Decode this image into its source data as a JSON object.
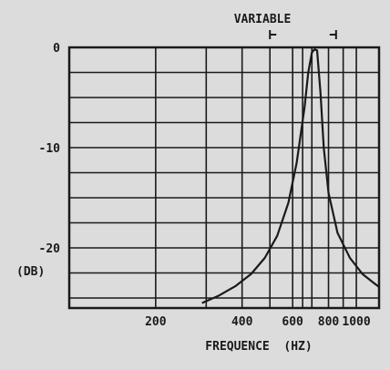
{
  "chart_data": {
    "type": "line",
    "title": "",
    "xlabel": "FREQUENCE  (HZ)",
    "ylabel": "(DB)",
    "x_scale": "log",
    "xlim": [
      100,
      1200
    ],
    "ylim": [
      -26,
      0
    ],
    "grid": true,
    "annotation": {
      "label": "VARIABLE",
      "range": [
        500,
        850
      ]
    },
    "x_ticks": [
      {
        "value": 200,
        "label": "200"
      },
      {
        "value": 400,
        "label": "400"
      },
      {
        "value": 600,
        "label": "600"
      },
      {
        "value": 800,
        "label": "800"
      },
      {
        "value": 1000,
        "label": "1000"
      }
    ],
    "y_ticks": [
      {
        "value": 0,
        "label": "0"
      },
      {
        "value": -10,
        "label": "-10"
      },
      {
        "value": -20,
        "label": "-20"
      }
    ],
    "x_gridlines": [
      200,
      300,
      400,
      500,
      600,
      650,
      700,
      800,
      900,
      1000
    ],
    "series": [
      {
        "x": [
          290,
          330,
          380,
          430,
          480,
          530,
          580,
          620,
          660,
          680,
          700,
          715,
          730,
          750,
          770,
          800,
          860,
          950,
          1050,
          1150,
          1200
        ],
        "y": [
          -25.5,
          -24.8,
          -23.8,
          -22.6,
          -21.0,
          -18.8,
          -15.5,
          -11.5,
          -6.0,
          -2.5,
          -0.5,
          -0.2,
          -0.3,
          -4.5,
          -10.0,
          -14.5,
          -18.5,
          -21.0,
          -22.6,
          -23.5,
          -23.9
        ]
      }
    ]
  }
}
